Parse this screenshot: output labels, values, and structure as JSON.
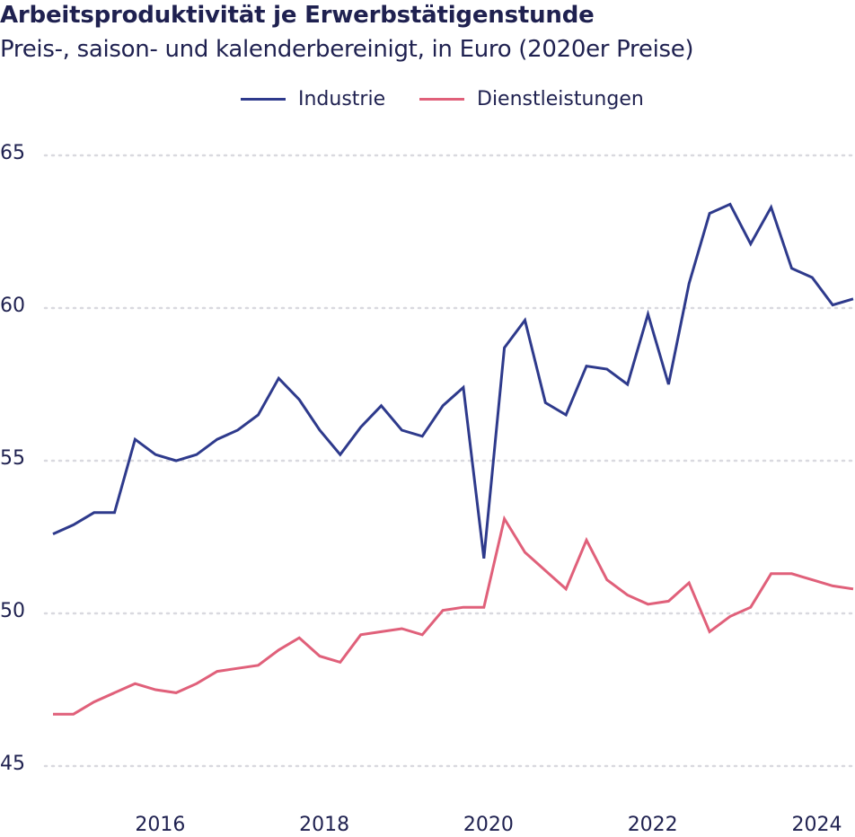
{
  "header": {
    "title": "Arbeitsproduktivität je Erwerbstätigenstunde",
    "subtitle": "Preis-, saison- und kalenderbereinigt, in Euro (2020er Preise)"
  },
  "chart_data": {
    "type": "line",
    "title": "Arbeitsproduktivität je Erwerbstätigenstunde",
    "subtitle": "Preis-, saison- und kalenderbereinigt, in Euro (2020er Preise)",
    "xlabel": "",
    "ylabel": "",
    "ylim": [
      45,
      65
    ],
    "yticks": [
      45,
      50,
      55,
      60,
      65
    ],
    "xlim": [
      2015.0,
      2024.75
    ],
    "xticks": [
      2016,
      2018,
      2020,
      2022,
      2024
    ],
    "grid": "horizontal dotted",
    "legend_position": "top-center",
    "x": [
      2015.0,
      2015.25,
      2015.5,
      2015.75,
      2016.0,
      2016.25,
      2016.5,
      2016.75,
      2017.0,
      2017.25,
      2017.5,
      2017.75,
      2018.0,
      2018.25,
      2018.5,
      2018.75,
      2019.0,
      2019.25,
      2019.5,
      2019.75,
      2020.0,
      2020.25,
      2020.5,
      2020.75,
      2021.0,
      2021.25,
      2021.5,
      2021.75,
      2022.0,
      2022.25,
      2022.5,
      2022.75,
      2023.0,
      2023.25,
      2023.5,
      2023.75,
      2024.0,
      2024.25,
      2024.5,
      2024.75
    ],
    "series": [
      {
        "name": "Industrie",
        "color": "#2e3a8c",
        "values": [
          52.6,
          52.9,
          53.3,
          53.3,
          55.7,
          55.2,
          55.0,
          55.2,
          55.7,
          56.0,
          56.5,
          57.7,
          57.0,
          56.0,
          55.2,
          56.1,
          56.8,
          56.0,
          55.8,
          56.8,
          57.4,
          51.8,
          58.7,
          59.6,
          56.9,
          56.5,
          58.1,
          58.0,
          57.5,
          59.8,
          57.5,
          60.8,
          63.1,
          63.4,
          62.1,
          63.3,
          61.3,
          61.0,
          60.1,
          60.3
        ]
      },
      {
        "name": "Dienstleistungen",
        "color": "#e0607a",
        "values": [
          46.7,
          46.7,
          47.1,
          47.4,
          47.7,
          47.5,
          47.4,
          47.7,
          48.1,
          48.2,
          48.3,
          48.8,
          49.2,
          48.6,
          48.4,
          49.3,
          49.4,
          49.5,
          49.3,
          50.1,
          50.2,
          50.2,
          53.1,
          52.0,
          51.4,
          50.8,
          52.4,
          51.1,
          50.6,
          50.3,
          50.4,
          51.0,
          49.4,
          49.9,
          50.2,
          51.3,
          51.3,
          51.1,
          50.9,
          50.8
        ]
      }
    ]
  }
}
